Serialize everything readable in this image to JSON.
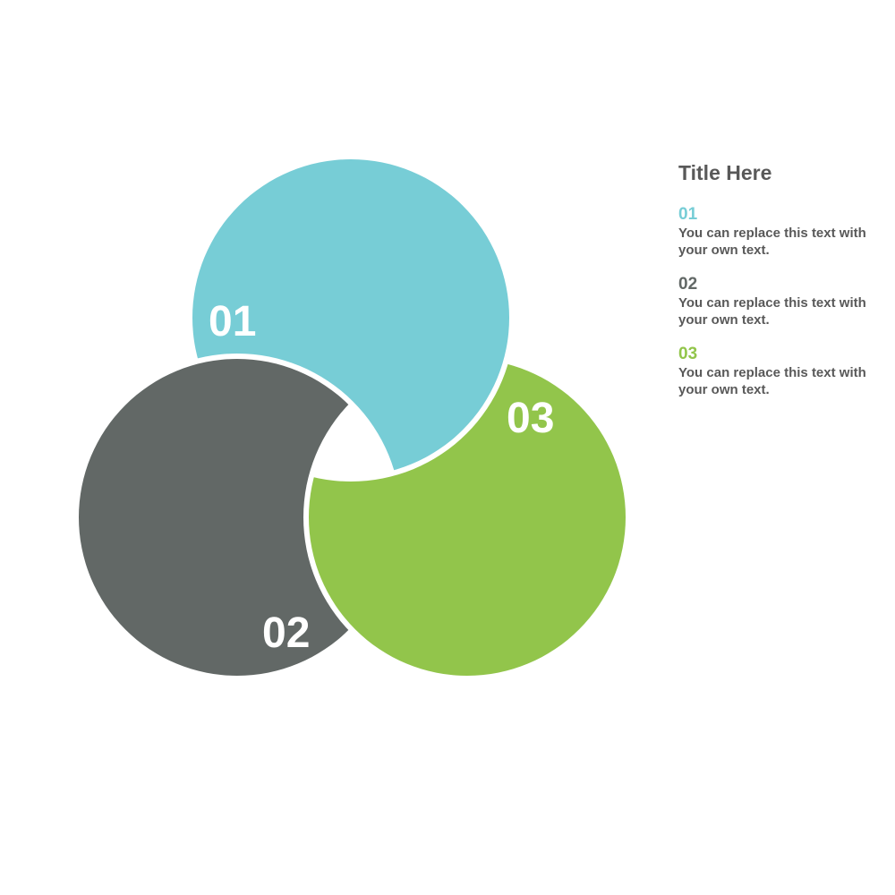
{
  "colors": {
    "teal": "#77CDD6",
    "gray": "#626866",
    "green": "#92C54B",
    "text": "#595959"
  },
  "diagram": {
    "segments": [
      {
        "label": "01",
        "color": "#77CDD6"
      },
      {
        "label": "02",
        "color": "#626866"
      },
      {
        "label": "03",
        "color": "#92C54B"
      }
    ]
  },
  "legend": {
    "title": "Title Here",
    "items": [
      {
        "num": "01",
        "text": "You can replace this text with your own text."
      },
      {
        "num": "02",
        "text": "You can replace this text with your own text."
      },
      {
        "num": "03",
        "text": "You can replace this text with your own text."
      }
    ]
  }
}
